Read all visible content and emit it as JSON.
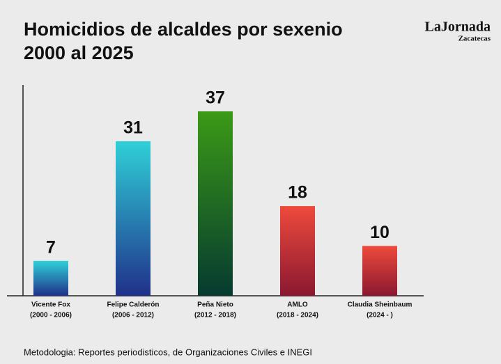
{
  "chart_data": {
    "type": "bar",
    "title": [
      "Homicidios de alcaldes por sexenio",
      "2000 al 2025"
    ],
    "source": "Metodologia: Reportes periodisticos, de Organizaciones Civiles e INEGI",
    "logo": {
      "name": "LaJornada",
      "region": "Zacatecas"
    },
    "categories": [
      "Vicente Fox",
      "Felipe Calderón",
      "Peña Nieto",
      "AMLO",
      "Claudia Sheinbaum"
    ],
    "periods": [
      "(2000 - 2006)",
      "(2006 - 2012)",
      "(2012 - 2018)",
      "(2018 - 2024)",
      "(2024 - )"
    ],
    "values": [
      7,
      31,
      37,
      18,
      10
    ],
    "colors": [
      [
        "#2fd0d8",
        "#20308a"
      ],
      [
        "#2fd0d8",
        "#20308a"
      ],
      [
        "#3b9a16",
        "#063a30"
      ],
      [
        "#ee4a3c",
        "#8a1830"
      ],
      [
        "#ee4a3c",
        "#8a1830"
      ]
    ]
  }
}
